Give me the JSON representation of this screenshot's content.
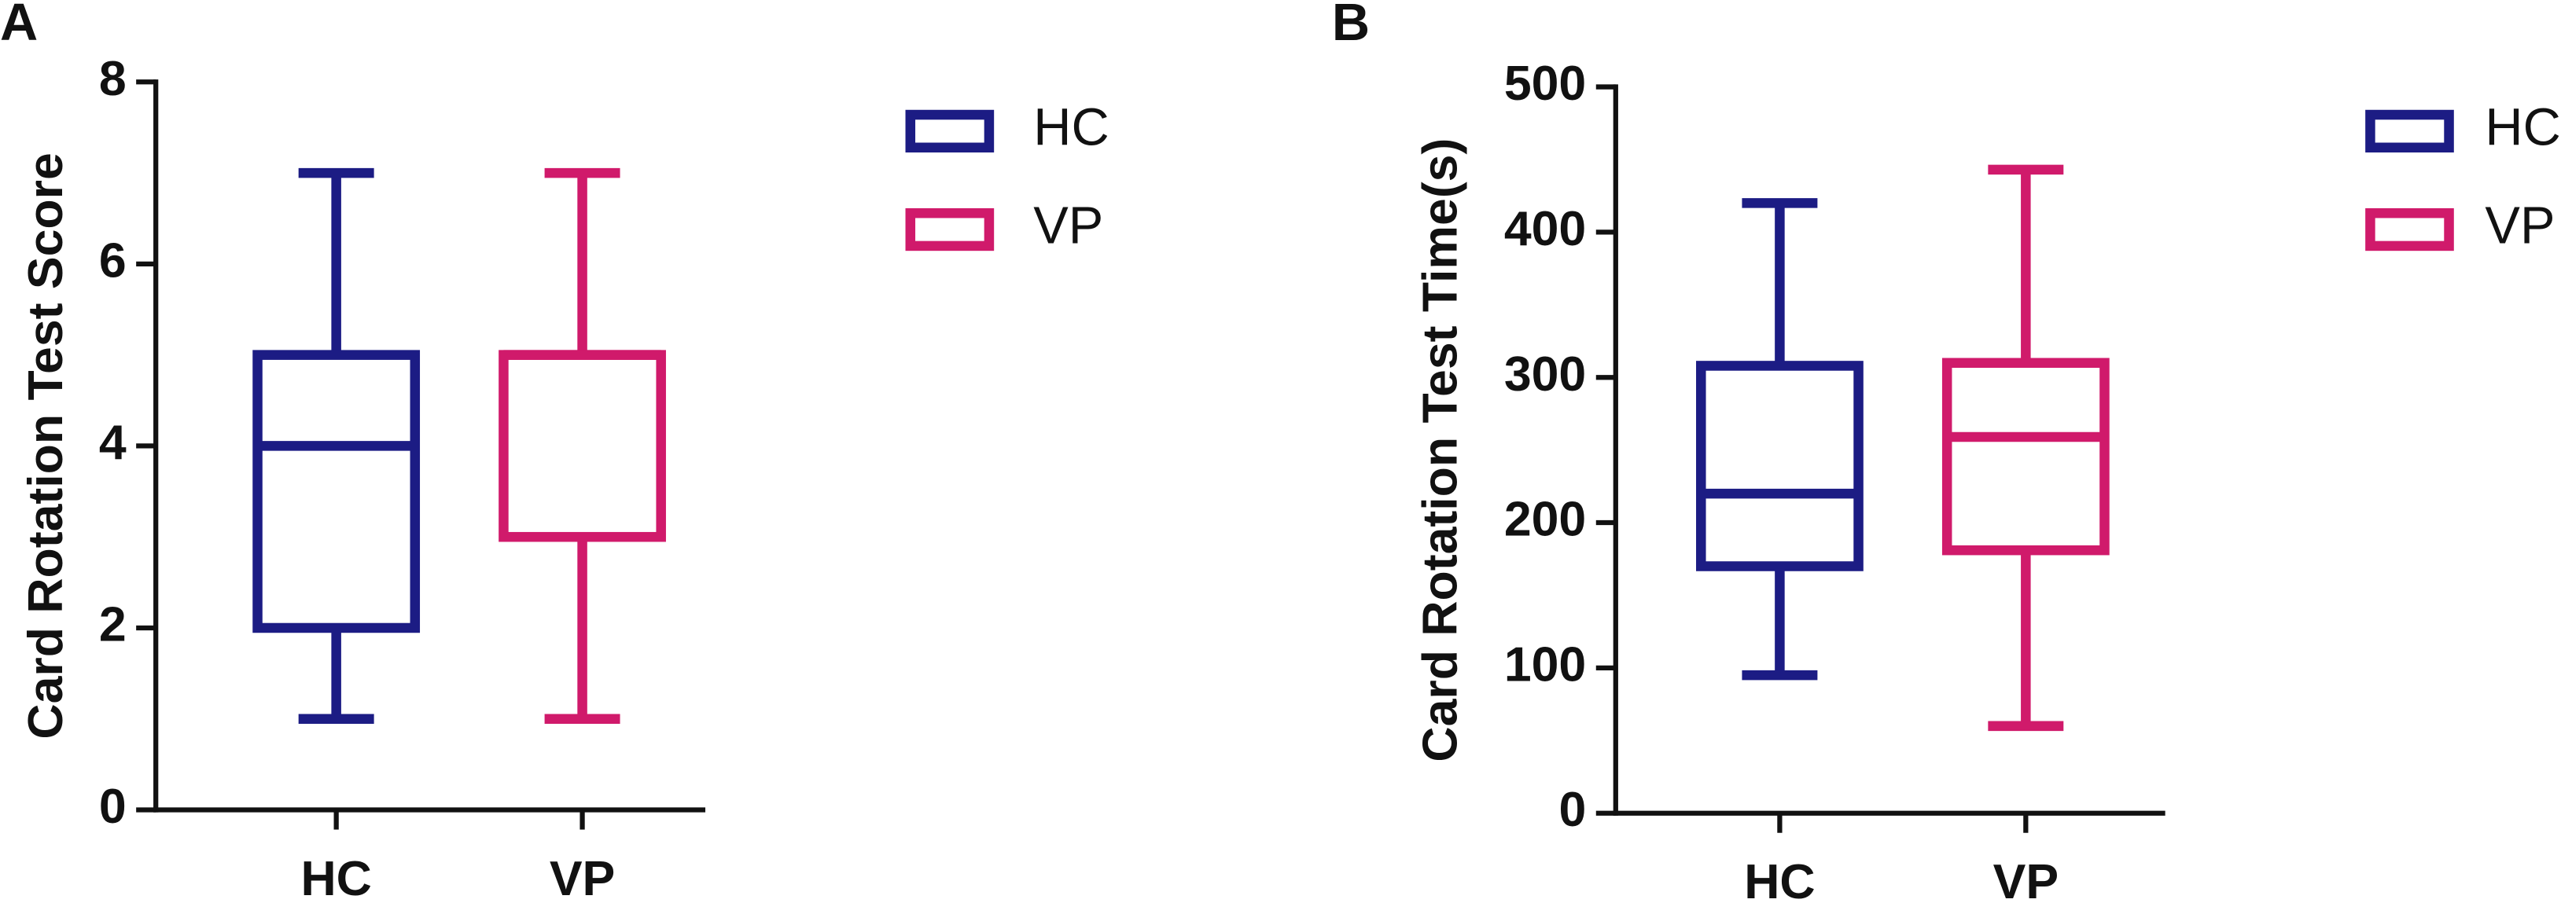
{
  "chart_data": [
    {
      "type": "box",
      "panel": "A",
      "ylabel": "Card Rotation Test Score",
      "categories": [
        "HC",
        "VP"
      ],
      "ylim": [
        0,
        8
      ],
      "yticks": [
        0,
        2,
        4,
        6,
        8
      ],
      "series": [
        {
          "name": "HC",
          "color": "#1c1c84",
          "min": 1,
          "q1": 2,
          "median": 4,
          "q3": 5,
          "max": 7
        },
        {
          "name": "VP",
          "color": "#d01a6b",
          "min": 1,
          "q1": 3,
          "median": 5,
          "q3": 5,
          "max": 7
        }
      ]
    },
    {
      "type": "box",
      "panel": "B",
      "ylabel": "Card Rotation Test Time(s)",
      "categories": [
        "HC",
        "VP"
      ],
      "ylim": [
        0,
        500
      ],
      "yticks": [
        0,
        100,
        200,
        300,
        400,
        500
      ],
      "series": [
        {
          "name": "HC",
          "color": "#1c1c84",
          "min": 95,
          "q1": 170,
          "median": 220,
          "q3": 308,
          "max": 420
        },
        {
          "name": "VP",
          "color": "#d01a6b",
          "min": 60,
          "q1": 181,
          "median": 259,
          "q3": 310,
          "max": 443
        }
      ]
    }
  ]
}
